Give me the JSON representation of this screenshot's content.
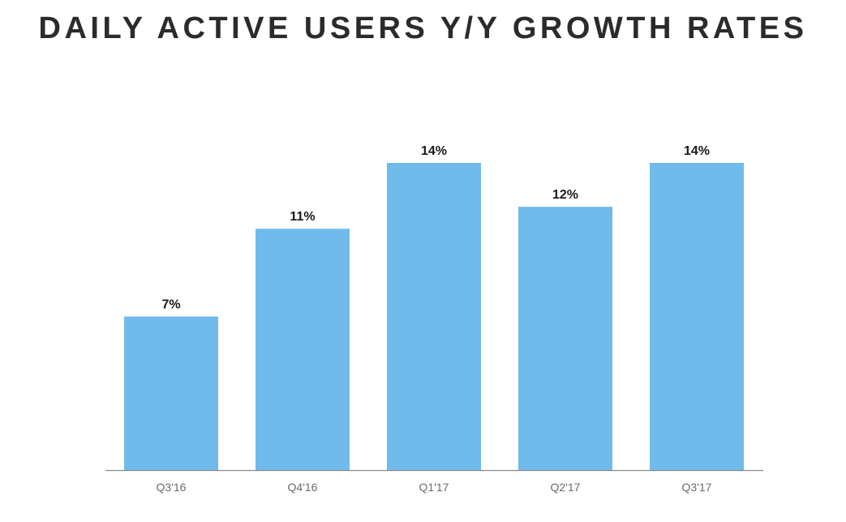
{
  "chart_data": {
    "type": "bar",
    "title": "DAILY ACTIVE USERS Y/Y GROWTH RATES",
    "categories": [
      "Q3'16",
      "Q4'16",
      "Q1'17",
      "Q2'17",
      "Q3'17"
    ],
    "values": [
      7,
      11,
      14,
      12,
      14
    ],
    "value_labels": [
      "7%",
      "11%",
      "14%",
      "12%",
      "14%"
    ],
    "value_unit": "%",
    "xlabel": "",
    "ylabel": "",
    "ylim": [
      0,
      14
    ],
    "grid": false,
    "legend": "none",
    "bar_color": "#70bbec"
  }
}
